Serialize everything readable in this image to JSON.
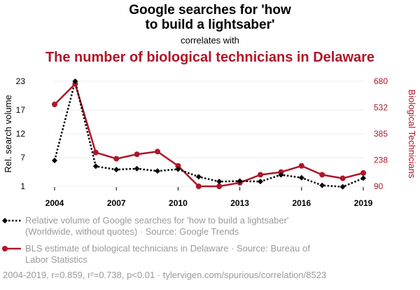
{
  "chart_data": {
    "type": "line",
    "title_lines": [
      "Google searches for 'how",
      "to build a lightsaber'"
    ],
    "subtitle": "correlates with",
    "title_second": "The number of biological technicians in Delaware",
    "x": [
      2004,
      2005,
      2006,
      2007,
      2008,
      2009,
      2010,
      2011,
      2012,
      2013,
      2014,
      2015,
      2016,
      2017,
      2018,
      2019
    ],
    "xticks": [
      "2004",
      "2007",
      "2010",
      "2013",
      "2016",
      "2019"
    ],
    "xtick_values": [
      2004,
      2007,
      2010,
      2013,
      2016,
      2019
    ],
    "xlim": [
      2004,
      2019
    ],
    "series": [
      {
        "name": "Relative volume of Google searches for 'how to build a lightsaber' (Worldwide, without quotes)",
        "axis": "left",
        "color": "#000000",
        "style": "dotted",
        "marker": "diamond",
        "values": [
          6.4,
          23,
          5.2,
          4.5,
          4.7,
          4.2,
          4.6,
          3.0,
          2.0,
          2.1,
          2.0,
          3.4,
          2.8,
          1.2,
          0.9,
          2.7
        ]
      },
      {
        "name": "BLS estimate of biological technicians in Delaware",
        "axis": "right",
        "color": "#b01528",
        "style": "solid",
        "marker": "circle",
        "values": [
          550,
          665,
          280,
          245,
          270,
          285,
          205,
          90,
          90,
          110,
          155,
          170,
          205,
          155,
          135,
          165
        ]
      }
    ],
    "y_left": {
      "label": "Rel. search volume",
      "ticks": [
        "1",
        "7",
        "12",
        "17",
        "23"
      ],
      "tick_values": [
        1,
        7,
        12,
        17,
        23
      ],
      "ylim": [
        1,
        23
      ]
    },
    "y_right": {
      "label": "Biological Technicians",
      "ticks": [
        "90",
        "238",
        "385",
        "532",
        "680"
      ],
      "tick_values": [
        90,
        238,
        385,
        532,
        680
      ],
      "ylim": [
        90,
        680
      ]
    },
    "legend": [
      {
        "line1": "Relative volume of Google searches for 'how to build a lightsaber'",
        "line2": "(Worldwide, without quotes) · Source: Google Trends"
      },
      {
        "line1": "BLS estimate of biological technicians in Delaware · Source: Bureau of",
        "line2": "Labor Statistics"
      }
    ],
    "footer": "2004-2019, r=0.859, r²=0.738, p<0.01 · tylervigen.com/spurious/correlation/8523"
  }
}
